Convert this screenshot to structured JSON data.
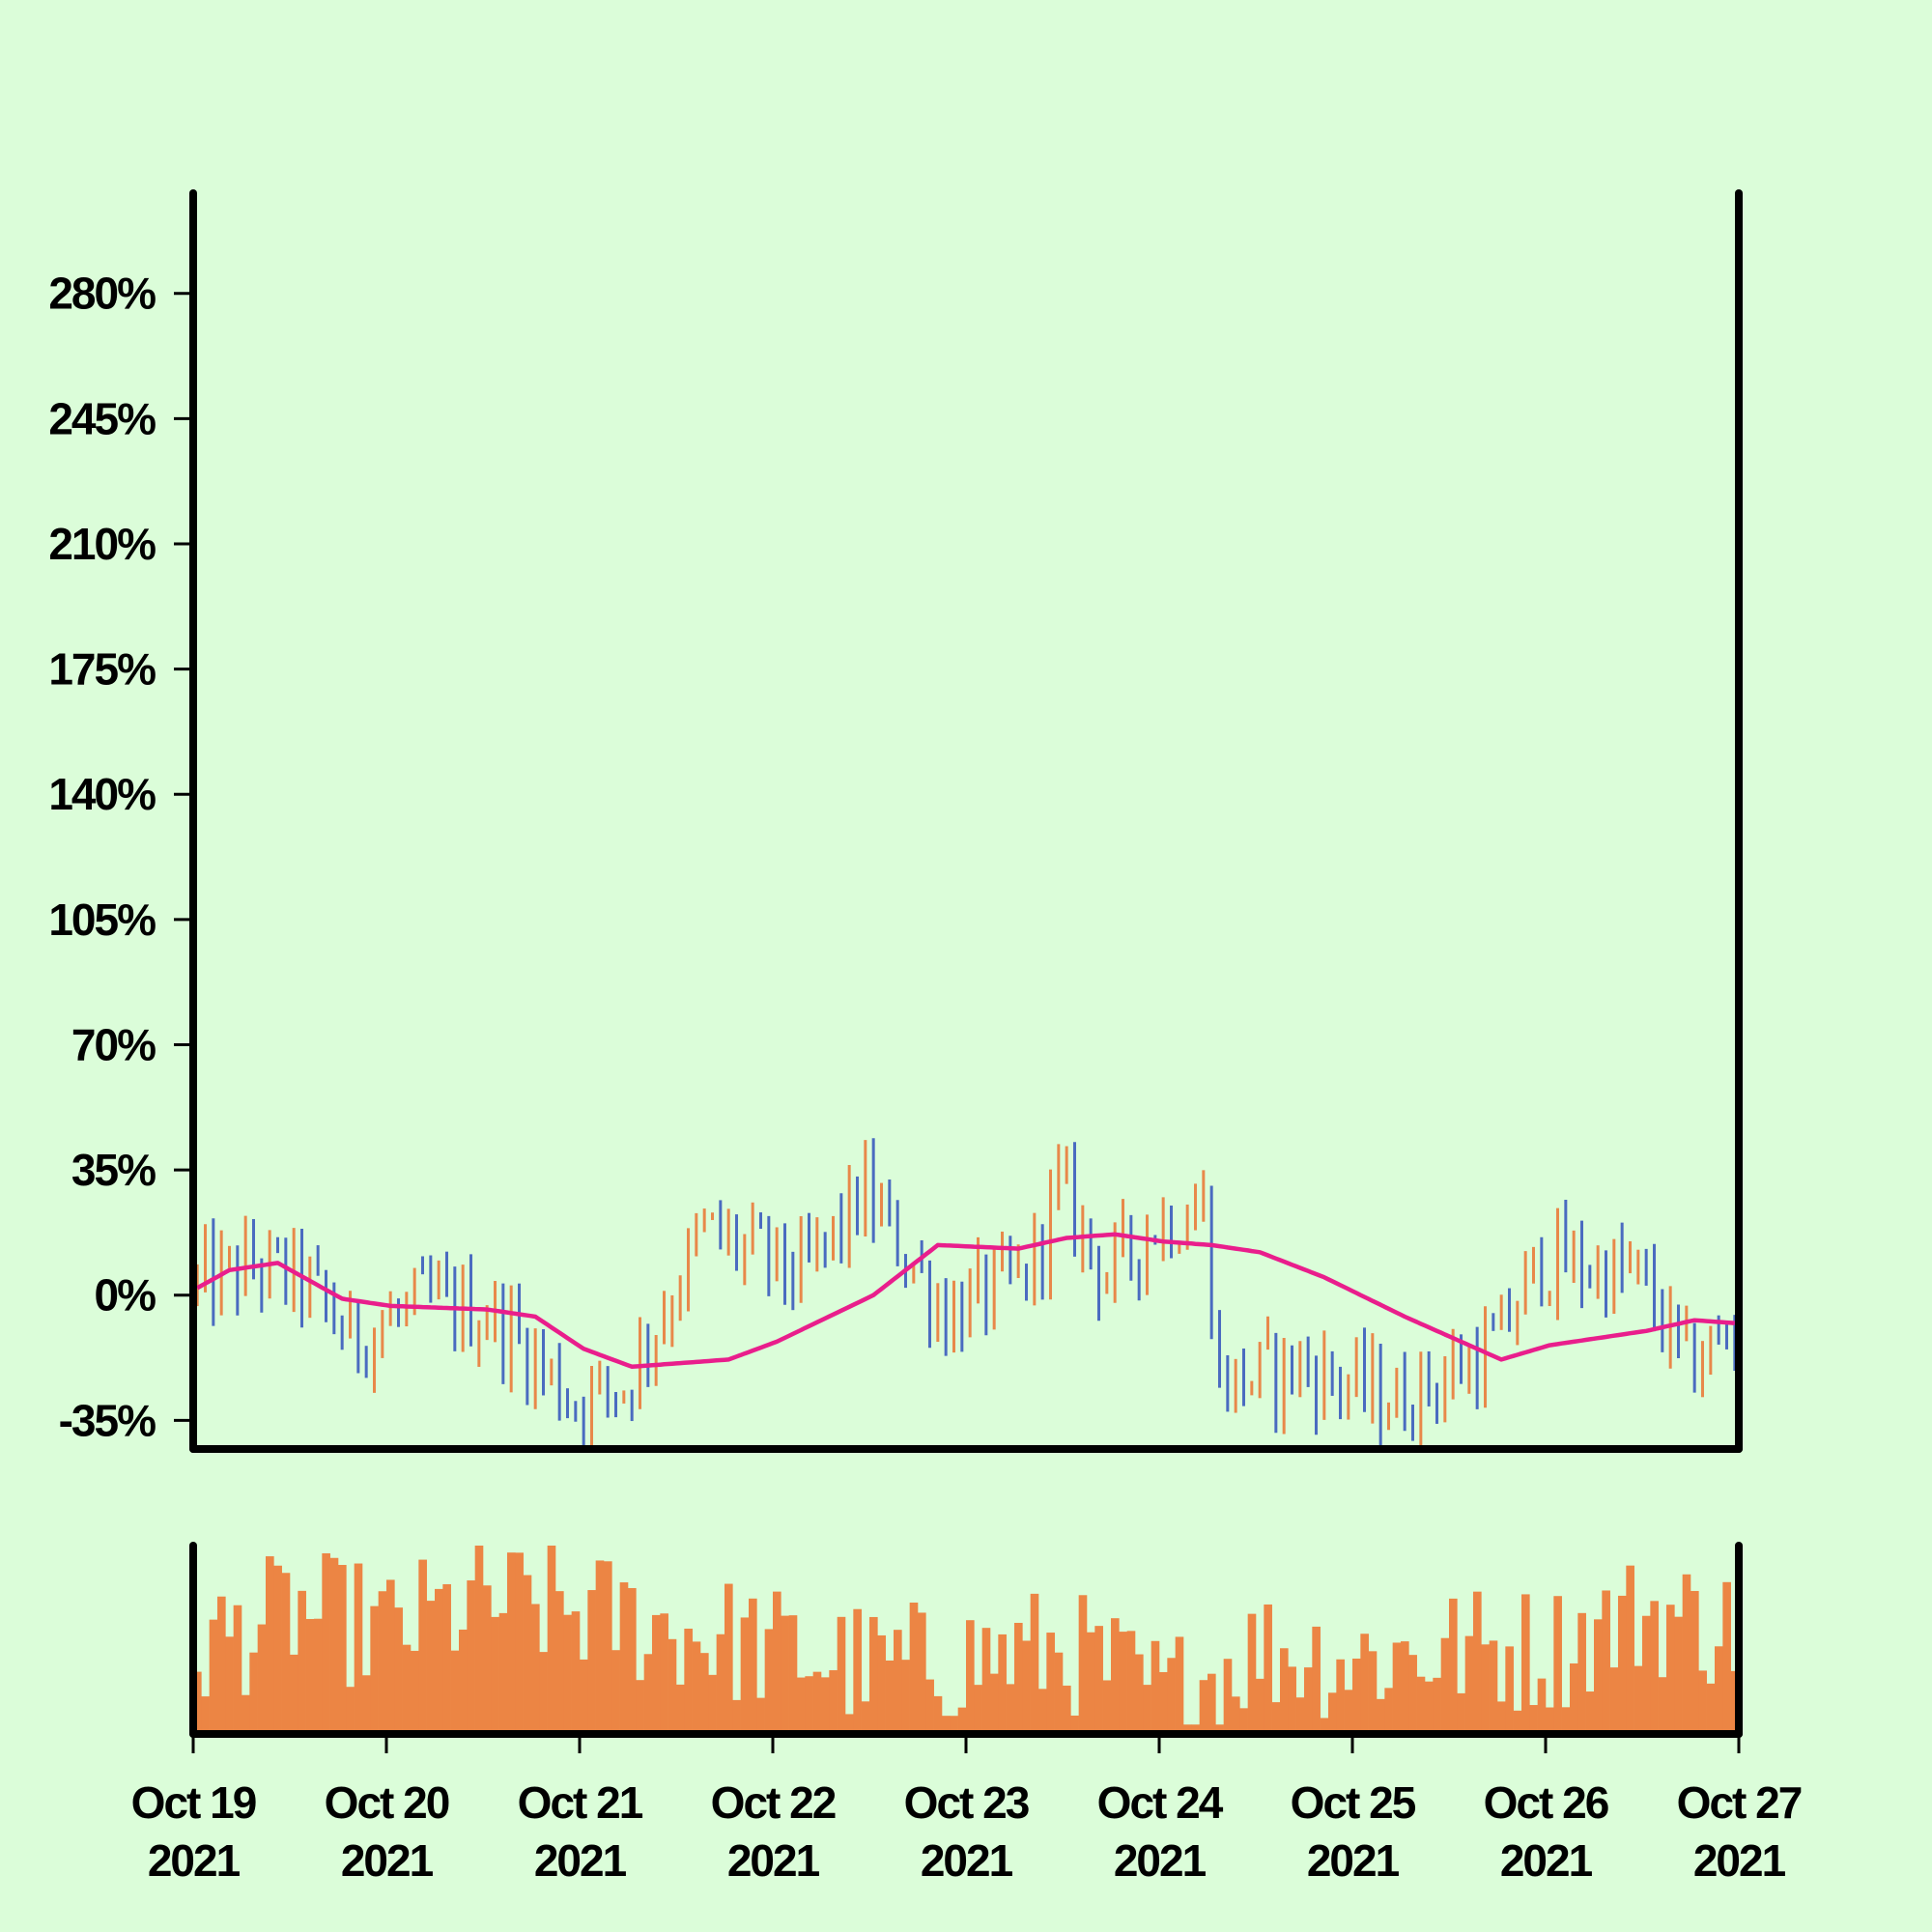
{
  "chart_data": [
    {
      "type": "ohlc",
      "title": "",
      "xlabel": "",
      "ylabel": "",
      "x_ticks": [
        {
          "date": "2021-10-19",
          "line1": "Oct 19",
          "line2": "2021"
        },
        {
          "date": "2021-10-20",
          "line1": "Oct 20",
          "line2": "2021"
        },
        {
          "date": "2021-10-21",
          "line1": "Oct 21",
          "line2": "2021"
        },
        {
          "date": "2021-10-22",
          "line1": "Oct 22",
          "line2": "2021"
        },
        {
          "date": "2021-10-23",
          "line1": "Oct 23",
          "line2": "2021"
        },
        {
          "date": "2021-10-24",
          "line1": "Oct 24",
          "line2": "2021"
        },
        {
          "date": "2021-10-25",
          "line1": "Oct 25",
          "line2": "2021"
        },
        {
          "date": "2021-10-26",
          "line1": "Oct 26",
          "line2": "2021"
        },
        {
          "date": "2021-10-27",
          "line1": "Oct 27",
          "line2": "2021"
        }
      ],
      "y_ticks": [
        {
          "value": -35,
          "label": "-35%"
        },
        {
          "value": 0,
          "label": "0%"
        },
        {
          "value": 35,
          "label": "35%"
        },
        {
          "value": 70,
          "label": "70%"
        },
        {
          "value": 105,
          "label": "105%"
        },
        {
          "value": 140,
          "label": "140%"
        },
        {
          "value": 175,
          "label": "175%"
        },
        {
          "value": 210,
          "label": "210%"
        },
        {
          "value": 245,
          "label": "245%"
        },
        {
          "value": 280,
          "label": "280%"
        }
      ],
      "xlim": [
        "2021-10-19 00:00",
        "2021-10-27 00:00"
      ],
      "ylim": [
        -43,
        308
      ],
      "grid": false,
      "legend": "none",
      "bar_interval_hours": 1,
      "up_color": "#e8884a",
      "down_color": "#4a6bc0",
      "moving_average_color": "#e91e8c",
      "close_series_key_points": [
        {
          "x": "2021-10-19 00:00",
          "y": 2
        },
        {
          "x": "2021-10-19 08:00",
          "y": 8
        },
        {
          "x": "2021-10-19 14:00",
          "y": 4
        },
        {
          "x": "2021-10-19 20:00",
          "y": -12
        },
        {
          "x": "2021-10-20 06:00",
          "y": -2
        },
        {
          "x": "2021-10-20 14:00",
          "y": -6
        },
        {
          "x": "2021-10-21 00:00",
          "y": -30
        },
        {
          "x": "2021-10-21 06:00",
          "y": -25
        },
        {
          "x": "2021-10-21 16:00",
          "y": 18
        },
        {
          "x": "2021-10-22 04:00",
          "y": 5
        },
        {
          "x": "2021-10-22 12:00",
          "y": 28
        },
        {
          "x": "2021-10-22 22:00",
          "y": -5
        },
        {
          "x": "2021-10-23 08:00",
          "y": 5
        },
        {
          "x": "2021-10-23 12:00",
          "y": 30
        },
        {
          "x": "2021-10-23 18:00",
          "y": 5
        },
        {
          "x": "2021-10-24 00:00",
          "y": 20
        },
        {
          "x": "2021-10-24 06:00",
          "y": 25
        },
        {
          "x": "2021-10-24 08:00",
          "y": -25
        },
        {
          "x": "2021-10-24 18:00",
          "y": -20
        },
        {
          "x": "2021-10-25 06:00",
          "y": -30
        },
        {
          "x": "2021-10-25 18:00",
          "y": -15
        },
        {
          "x": "2021-10-26 00:00",
          "y": 10
        },
        {
          "x": "2021-10-26 12:00",
          "y": 5
        },
        {
          "x": "2021-10-26 18:00",
          "y": -20
        },
        {
          "x": "2021-10-27 00:00",
          "y": -10
        }
      ],
      "moving_average_key_points": [
        {
          "x": "2021-10-19 00:00",
          "y": 2
        },
        {
          "x": "2021-10-19 04:00",
          "y": 7
        },
        {
          "x": "2021-10-19 10:00",
          "y": 9
        },
        {
          "x": "2021-10-19 18:00",
          "y": -1
        },
        {
          "x": "2021-10-20 00:00",
          "y": -3
        },
        {
          "x": "2021-10-20 12:00",
          "y": -4
        },
        {
          "x": "2021-10-20 18:00",
          "y": -6
        },
        {
          "x": "2021-10-21 00:00",
          "y": -15
        },
        {
          "x": "2021-10-21 06:00",
          "y": -20
        },
        {
          "x": "2021-10-21 18:00",
          "y": -18
        },
        {
          "x": "2021-10-22 00:00",
          "y": -13
        },
        {
          "x": "2021-10-22 12:00",
          "y": 0
        },
        {
          "x": "2021-10-22 20:00",
          "y": 14
        },
        {
          "x": "2021-10-23 06:00",
          "y": 13
        },
        {
          "x": "2021-10-23 12:00",
          "y": 16
        },
        {
          "x": "2021-10-23 18:00",
          "y": 17
        },
        {
          "x": "2021-10-24 00:00",
          "y": 15
        },
        {
          "x": "2021-10-24 06:00",
          "y": 14
        },
        {
          "x": "2021-10-24 12:00",
          "y": 12
        },
        {
          "x": "2021-10-24 20:00",
          "y": 5
        },
        {
          "x": "2021-10-25 06:00",
          "y": -6
        },
        {
          "x": "2021-10-25 18:00",
          "y": -18
        },
        {
          "x": "2021-10-26 00:00",
          "y": -14
        },
        {
          "x": "2021-10-26 12:00",
          "y": -10
        },
        {
          "x": "2021-10-26 18:00",
          "y": -7
        },
        {
          "x": "2021-10-27 00:00",
          "y": -8
        }
      ]
    },
    {
      "type": "bar",
      "title": "",
      "series": "volume",
      "color": "#ec8544",
      "ylim": [
        0,
        1
      ],
      "y_ticks": [],
      "bar_interval_hours": 1,
      "relative_level_key_points": [
        {
          "x": "2021-10-19 00:00",
          "y": 0.45
        },
        {
          "x": "2021-10-19 12:00",
          "y": 0.65
        },
        {
          "x": "2021-10-20 00:00",
          "y": 0.55
        },
        {
          "x": "2021-10-20 12:00",
          "y": 0.7
        },
        {
          "x": "2021-10-21 00:00",
          "y": 0.65
        },
        {
          "x": "2021-10-21 12:00",
          "y": 0.55
        },
        {
          "x": "2021-10-22 00:00",
          "y": 0.45
        },
        {
          "x": "2021-10-22 12:00",
          "y": 0.35
        },
        {
          "x": "2021-10-23 00:00",
          "y": 0.4
        },
        {
          "x": "2021-10-23 12:00",
          "y": 0.45
        },
        {
          "x": "2021-10-24 00:00",
          "y": 0.2
        },
        {
          "x": "2021-10-24 12:00",
          "y": 0.45
        },
        {
          "x": "2021-10-25 00:00",
          "y": 0.4
        },
        {
          "x": "2021-10-25 12:00",
          "y": 0.45
        },
        {
          "x": "2021-10-26 00:00",
          "y": 0.45
        },
        {
          "x": "2021-10-26 12:00",
          "y": 0.65
        },
        {
          "x": "2021-10-27 00:00",
          "y": 0.55
        }
      ]
    }
  ]
}
